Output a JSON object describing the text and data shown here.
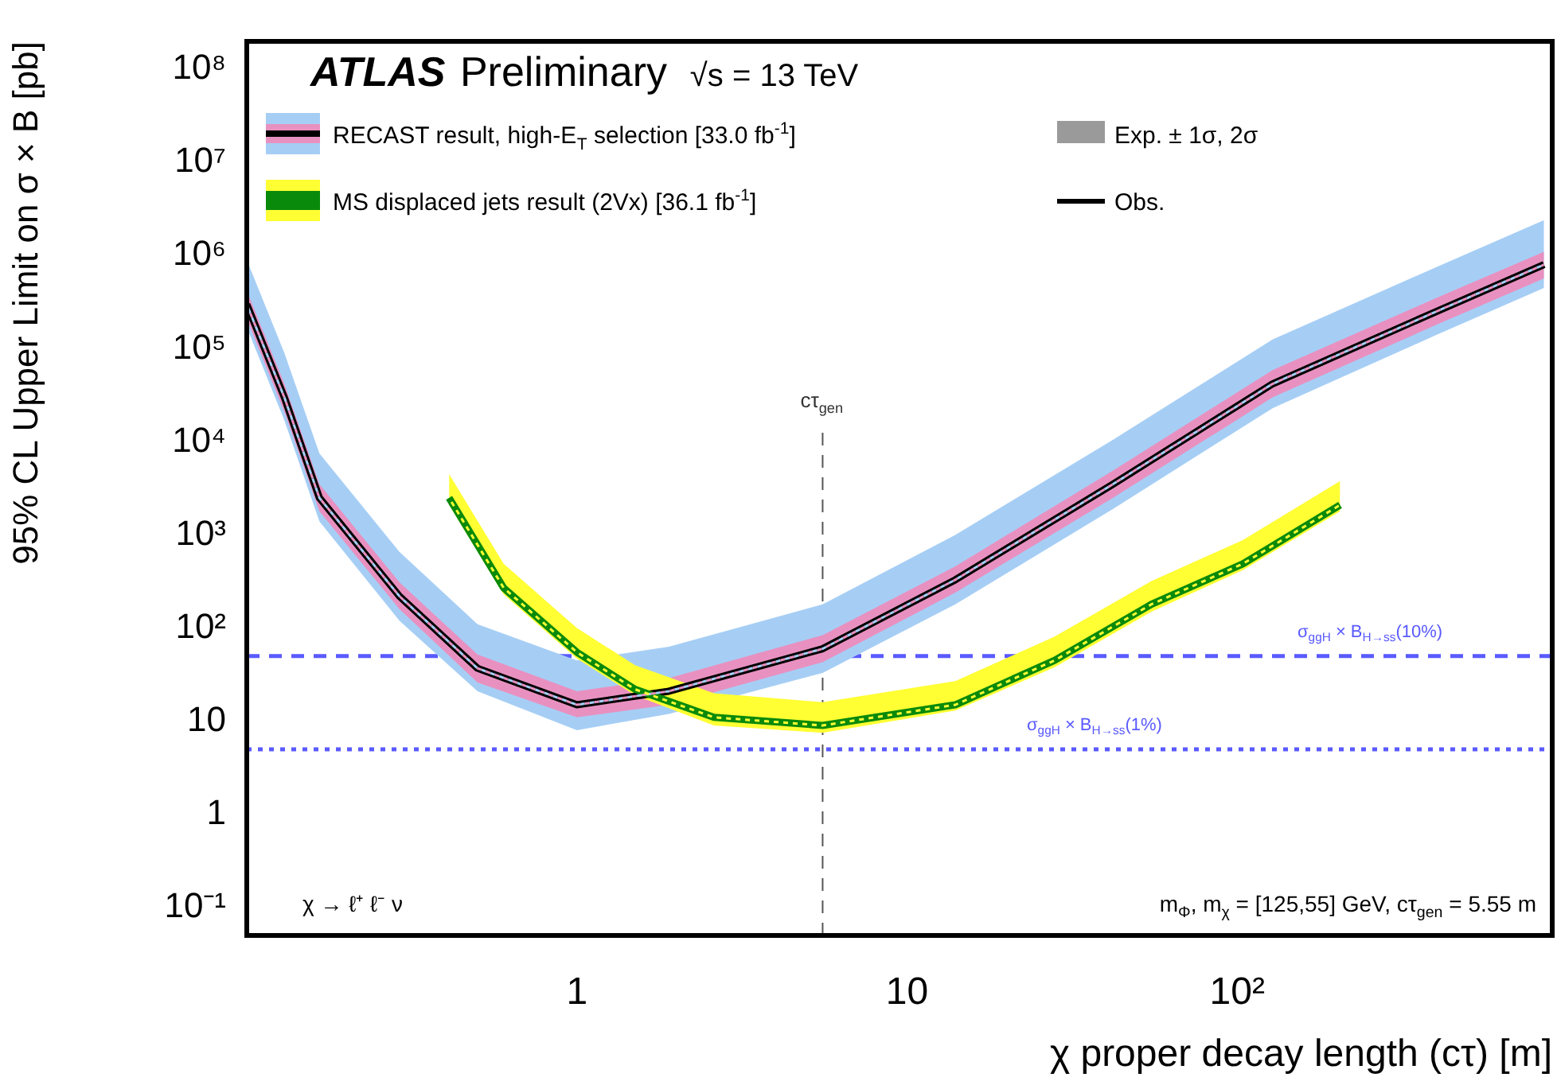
{
  "chart_data": {
    "type": "line",
    "title": "ATLAS Preliminary",
    "subtitle": "√s = 13 TeV",
    "xlabel": "χ proper decay length (cτ) [m]",
    "ylabel": "95% CL Upper Limit on σ × B [pb]",
    "log": "xy",
    "grid": false,
    "legend": "top left",
    "marker": "none",
    "xlim": [
      0.1,
      900
    ],
    "xticks": [
      1,
      10,
      {
        "value": 100,
        "label": "10²"
      }
    ],
    "ylim": [
      0.05,
      200000000
    ],
    "yticks": [
      {
        "value": 0.1,
        "label": "10⁻¹"
      },
      1,
      10,
      {
        "value": 100,
        "label": "10²"
      },
      {
        "value": 1000,
        "label": "10³"
      },
      {
        "value": 10000,
        "label": "10⁴"
      },
      {
        "value": 100000,
        "label": "10⁵"
      },
      {
        "value": 1000000,
        "label": "10⁶"
      },
      {
        "value": 10000000,
        "label": "10⁷"
      },
      {
        "value": 100000000,
        "label": "10⁸"
      }
    ],
    "series": [
      {
        "type": "line",
        "line_style": "dashed",
        "color": "#a6cef5",
        "x": [
          0.1,
          0.13,
          0.166,
          0.29,
          0.5,
          1.0,
          1.9,
          5.55,
          14,
          42,
          128,
          400,
          850
        ],
        "values": [
          300000,
          30000,
          2500,
          220,
          37,
          15,
          21,
          60,
          330,
          3500,
          42000,
          250000,
          800000
        ],
        "lower": [
          170000,
          17000,
          1400,
          120,
          21,
          8,
          12,
          33,
          180,
          1900,
          23000,
          140000,
          450000
        ],
        "upper": [
          900000,
          90000,
          7500,
          660,
          110,
          45,
          63,
          180,
          1000,
          10500,
          126000,
          750000,
          2400000
        ]
      },
      {
        "type": "line",
        "line_style": "dashed",
        "color": "#e891c0",
        "x": [
          0.1,
          0.13,
          0.166,
          0.29,
          0.5,
          1.0,
          1.9,
          5.55,
          14,
          42,
          128,
          400,
          850
        ],
        "values": [
          300000,
          30000,
          2500,
          220,
          37,
          15,
          21,
          60,
          330,
          3500,
          42000,
          250000,
          800000
        ],
        "lower": [
          210000,
          21000,
          1800,
          160,
          26,
          11,
          15,
          43,
          240,
          2500,
          30000,
          180000,
          570000
        ],
        "upper": [
          420000,
          42000,
          3500,
          310,
          52,
          21,
          29,
          84,
          460,
          4900,
          59000,
          350000,
          1100000
        ]
      },
      {
        "type": "line",
        "name": "RECAST result, high-E$_{T}$ selection [33.0 fb$^{-1}$]",
        "color": "#000000",
        "x": [
          0.1,
          0.13,
          0.166,
          0.29,
          0.5,
          1.0,
          1.9,
          5.55,
          14,
          42,
          128,
          400,
          850
        ],
        "values": [
          300000,
          30000,
          2500,
          220,
          37,
          15,
          21,
          60,
          330,
          3500,
          42000,
          250000,
          800000
        ]
      },
      {
        "type": "line",
        "line_style": "dashed",
        "color": "#ffff33",
        "x": [
          0.41,
          0.6,
          1.0,
          1.5,
          2.6,
          5.55,
          14,
          28,
          55,
          104,
          205
        ],
        "values": [
          2500,
          270,
          55,
          22,
          11,
          9,
          15,
          45,
          180,
          490,
          2100
        ],
        "lower": [
          2100,
          230,
          47,
          19,
          9,
          7.5,
          13,
          38,
          150,
          420,
          1800
        ],
        "upper": [
          4500,
          490,
          100,
          40,
          20,
          16,
          27,
          81,
          320,
          880,
          3800
        ]
      },
      {
        "type": "line",
        "name": "MS displaced jets result (2Vx) [36.1 fb$^{-1}$]",
        "color": "#0a8a0a",
        "x": [
          0.41,
          0.6,
          1.0,
          1.5,
          2.6,
          5.55,
          14,
          28,
          55,
          104,
          205
        ],
        "values": [
          2500,
          270,
          55,
          22,
          11,
          9,
          15,
          45,
          180,
          490,
          2100
        ]
      }
    ],
    "ref_lines": [
      {
        "axis": "y",
        "value": 50,
        "label": "σ$_{ggH}$ × B$_{H→ss}$(10%)",
        "color": "#5a5aff",
        "line_style": "dashed"
      },
      {
        "axis": "y",
        "value": 5,
        "label": "σ$_{ggH}$ × B$_{H→ss}$(1%)",
        "color": "#5a5aff",
        "line_style": "dotted"
      },
      {
        "axis": "x",
        "value": 5.55,
        "label": "cτ$_{gen}$",
        "color": "#555555",
        "line_style": "dashed"
      }
    ],
    "annotations": [
      "Exp. ± 1σ, 2σ",
      "Obs.",
      "χ → ℓ⁺ ℓ⁻ ν",
      "m$_{Φ}$, m$_{χ}$ = [125,55] GeV, cτ$_{gen}$ = 5.55 m"
    ]
  }
}
